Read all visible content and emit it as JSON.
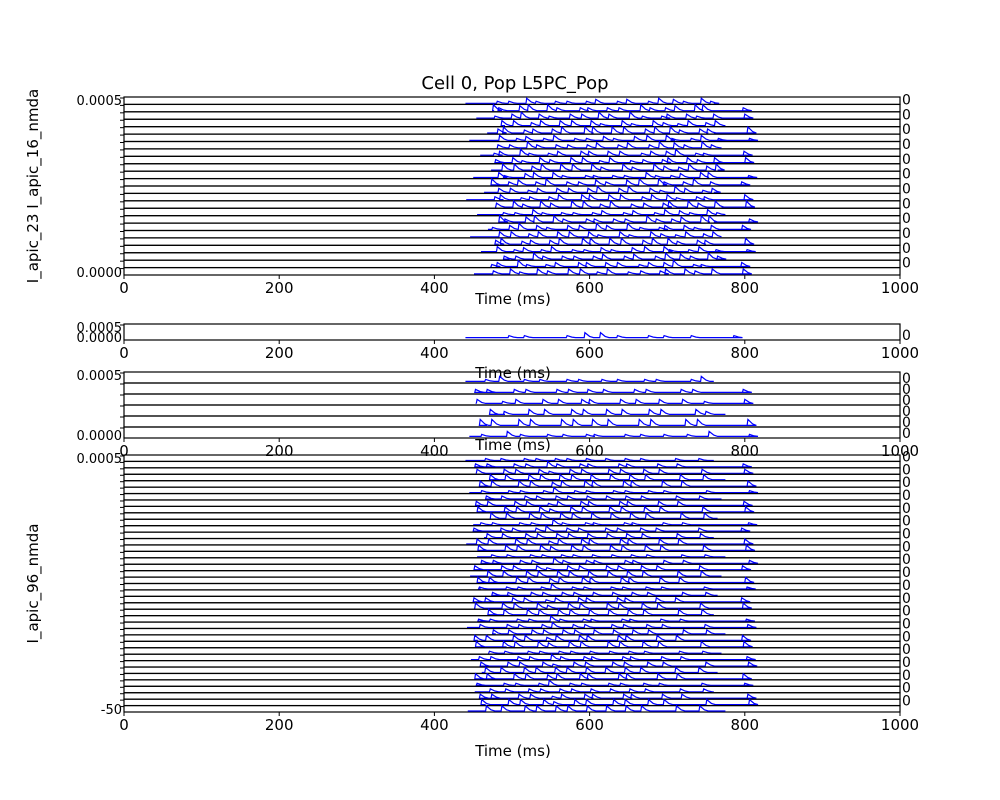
{
  "title": "Cell 0, Pop L5PC_Pop",
  "colors": {
    "trace": "#0000ff",
    "axes": "#000000",
    "background": "#ffffff"
  },
  "chart_data": [
    {
      "type": "line",
      "panel": "soma-and-apical-nmda-currents",
      "stacked_axes": 24,
      "xlabel": "Time (ms)",
      "xlim": [
        0,
        1000
      ],
      "xticks": [
        "0",
        "200",
        "400",
        "600",
        "800",
        "1000"
      ],
      "ylabel_visible": "I_apic_23 I_apic_16_nmda",
      "ytick_top": "0.0005",
      "ytick_bottom": "0.0000",
      "spike_times_ms": [
        478,
        485,
        500,
        512,
        523,
        535,
        548,
        560,
        575,
        590,
        600,
        612,
        625,
        640,
        652,
        668,
        680,
        693,
        700,
        712,
        725,
        738,
        748,
        760,
        800
      ]
    },
    {
      "type": "line",
      "panel": "single-current-trace",
      "stacked_axes": 1,
      "xlabel": "Time (ms)",
      "xlim": [
        0,
        1000
      ],
      "xticks": [
        "0",
        "200",
        "400",
        "600",
        "800",
        "1000"
      ],
      "ytick_top": "0.0005",
      "ytick_bottom": "0.0000",
      "spike_times_ms": [
        488,
        500,
        520,
        545,
        575,
        598,
        605,
        618,
        640,
        660,
        680,
        700,
        720,
        735,
        790,
        800
      ]
    },
    {
      "type": "line",
      "panel": "basal-currents",
      "stacked_axes": 6,
      "xlabel": "Time (ms)",
      "xlim": [
        0,
        1000
      ],
      "xticks": [
        "0",
        "200",
        "400",
        "600",
        "800",
        "1000"
      ],
      "ytick_top": "0.0005",
      "ytick_bottom": "0.0000",
      "spike_times_ms": [
        455,
        470,
        488,
        505,
        520,
        540,
        560,
        575,
        590,
        600,
        620,
        640,
        660,
        675,
        690,
        720,
        735,
        748,
        800
      ]
    },
    {
      "type": "line",
      "panel": "voltage-traces",
      "stacked_axes": 40,
      "xlabel": "Time (ms)",
      "xlim": [
        0,
        1000
      ],
      "xticks": [
        "0",
        "200",
        "400",
        "600",
        "800",
        "1000"
      ],
      "ylabel_visible": "I_apic_96_nmda",
      "ytick_top": "0.0005",
      "ytick_bottom": "-50",
      "spike_times_ms": [
        455,
        470,
        490,
        505,
        520,
        535,
        548,
        560,
        575,
        590,
        600,
        625,
        640,
        650,
        670,
        690,
        715,
        745,
        800
      ]
    }
  ]
}
